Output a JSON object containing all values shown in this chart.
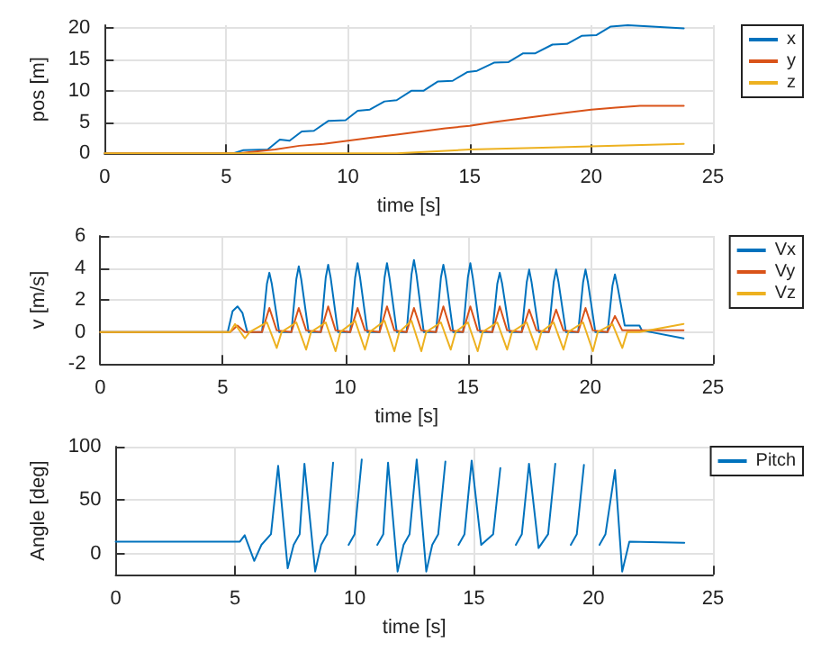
{
  "chart_data": [
    {
      "type": "line",
      "xlabel": "time [s]",
      "ylabel": "pos [m]",
      "xlim": [
        0,
        25
      ],
      "xticks": [
        0,
        5,
        10,
        15,
        20,
        25
      ],
      "ylim": [
        0,
        20.5
      ],
      "yticks": [
        0,
        5,
        10,
        15,
        20
      ],
      "grid": true,
      "legend": "top right",
      "marker": "none",
      "line_style": "solid",
      "series": [
        {
          "name": "x",
          "color": "#0072bd",
          "x": [
            0,
            5.3,
            5.7,
            6.7,
            7.2,
            7.6,
            8.1,
            8.6,
            9.2,
            9.9,
            10.4,
            10.9,
            11.5,
            12,
            12.6,
            13.1,
            13.7,
            14.3,
            14.9,
            15.3,
            16,
            16.6,
            17.2,
            17.7,
            18.4,
            19,
            19.6,
            20.2,
            20.8,
            21.5,
            22.5,
            23.8
          ],
          "values": [
            0,
            0,
            0.5,
            0.6,
            2.2,
            2,
            3.5,
            3.6,
            5.2,
            5.3,
            6.8,
            7,
            8.3,
            8.5,
            10,
            10,
            11.5,
            11.6,
            13,
            13.2,
            14.5,
            14.6,
            16,
            16,
            17.4,
            17.5,
            18.8,
            18.9,
            20.3,
            20.5,
            20.3,
            20
          ]
        },
        {
          "name": "y",
          "color": "#d95319",
          "x": [
            0,
            5.5,
            7,
            8,
            9,
            10,
            11,
            12,
            13,
            14,
            15,
            16,
            17,
            18,
            19,
            20,
            21,
            22,
            23.8
          ],
          "values": [
            0,
            0,
            0.6,
            1.2,
            1.5,
            2,
            2.5,
            3,
            3.5,
            4,
            4.4,
            5,
            5.5,
            6,
            6.5,
            7,
            7.3,
            7.6,
            7.6
          ]
        },
        {
          "name": "z",
          "color": "#edb120",
          "x": [
            0,
            12,
            15,
            18,
            20,
            23.8
          ],
          "values": [
            0,
            0,
            0.6,
            0.9,
            1.1,
            1.5
          ]
        }
      ]
    },
    {
      "type": "line",
      "xlabel": "time [s]",
      "ylabel": "v [m/s]",
      "xlim": [
        0,
        25
      ],
      "xticks": [
        0,
        5,
        10,
        15,
        20,
        25
      ],
      "ylim": [
        -2,
        6
      ],
      "yticks": [
        -2,
        0,
        2,
        4,
        6
      ],
      "grid": true,
      "legend": "top right",
      "marker": "none",
      "line_style": "solid",
      "series": [
        {
          "name": "Vx",
          "color": "#0072bd",
          "x": [
            0,
            5.2,
            5.4,
            5.6,
            5.8,
            6.0,
            6.6,
            6.8,
            6.9,
            7.0,
            7.3,
            7.8,
            8.0,
            8.1,
            8.2,
            8.5,
            9.0,
            9.2,
            9.3,
            9.4,
            9.7,
            10.2,
            10.4,
            10.5,
            10.6,
            10.9,
            11.4,
            11.6,
            11.7,
            11.8,
            12.1,
            12.5,
            12.7,
            12.8,
            12.9,
            13.2,
            13.7,
            13.9,
            14.0,
            14.1,
            14.4,
            14.8,
            15.0,
            15.1,
            15.2,
            15.5,
            16.0,
            16.2,
            16.3,
            16.4,
            16.7,
            17.2,
            17.4,
            17.5,
            17.6,
            17.9,
            18.3,
            18.5,
            18.6,
            18.7,
            19.0,
            19.5,
            19.7,
            19.8,
            19.9,
            20.2,
            20.7,
            20.9,
            21.0,
            21.1,
            21.4,
            21.6,
            22.0,
            22.1,
            23.8
          ],
          "values": [
            0,
            0,
            1.3,
            1.6,
            1.2,
            0,
            0,
            3.0,
            3.7,
            3.0,
            0,
            0,
            3.3,
            4.1,
            3.3,
            0,
            0,
            3.4,
            4.2,
            3.4,
            0,
            0,
            3.4,
            4.3,
            3.4,
            0,
            0,
            3.4,
            4.3,
            3.4,
            0,
            0,
            3.6,
            4.5,
            3.6,
            0,
            0,
            3.4,
            4.2,
            3.4,
            0,
            0,
            3.4,
            4.3,
            3.4,
            0,
            0,
            3.0,
            3.7,
            3.0,
            0,
            0,
            3.1,
            3.9,
            3.1,
            0,
            0,
            3.1,
            3.9,
            3.1,
            0,
            0,
            3.1,
            3.9,
            3.1,
            0,
            0,
            2.9,
            3.6,
            2.9,
            0.4,
            0.4,
            0.4,
            0.1,
            -0.4
          ]
        },
        {
          "name": "Vy",
          "color": "#d95319",
          "x": [
            0,
            5.3,
            5.6,
            5.9,
            6.6,
            6.9,
            7.2,
            7.8,
            8.1,
            8.4,
            9.0,
            9.3,
            9.6,
            10.2,
            10.5,
            10.8,
            11.4,
            11.7,
            12.0,
            12.5,
            12.8,
            13.1,
            13.7,
            14.0,
            14.3,
            14.8,
            15.1,
            15.4,
            16.0,
            16.3,
            16.6,
            17.2,
            17.5,
            17.8,
            18.3,
            18.6,
            18.9,
            19.5,
            19.8,
            20.1,
            20.7,
            21.0,
            21.3,
            23.8
          ],
          "values": [
            0,
            0,
            0.4,
            0,
            0,
            1.5,
            0.1,
            0,
            1.5,
            0.1,
            0,
            1.6,
            0.1,
            0,
            1.5,
            0.1,
            0,
            1.6,
            0.1,
            0,
            1.5,
            0.1,
            0,
            1.6,
            0.1,
            0,
            1.6,
            0.1,
            0,
            1.6,
            0.1,
            0,
            1.4,
            0.1,
            0,
            1.4,
            0.1,
            0,
            1.5,
            0.1,
            0,
            1.0,
            0.1,
            0.1
          ]
        },
        {
          "name": "Vz",
          "color": "#edb120",
          "x": [
            0,
            5.3,
            5.5,
            5.9,
            6.1,
            6.8,
            7.2,
            7.4,
            8.0,
            8.4,
            8.6,
            9.2,
            9.6,
            9.8,
            10.4,
            10.8,
            11.0,
            11.6,
            12.0,
            12.2,
            12.7,
            13.1,
            13.3,
            13.9,
            14.3,
            14.5,
            15.0,
            15.4,
            15.6,
            16.2,
            16.6,
            16.8,
            17.4,
            17.8,
            18.0,
            18.5,
            18.9,
            19.1,
            19.7,
            20.1,
            20.3,
            20.9,
            21.3,
            21.5,
            22.0,
            23.8
          ],
          "values": [
            0,
            0,
            0.5,
            -0.4,
            0,
            0.6,
            -1.0,
            0,
            0.6,
            -1.1,
            0,
            0.6,
            -1.2,
            0,
            0.7,
            -1.1,
            0,
            0.7,
            -1.2,
            0,
            0.7,
            -1.2,
            0,
            0.6,
            -1.1,
            0,
            0.6,
            -1.2,
            0,
            0.6,
            -1.1,
            0,
            0.6,
            -1.1,
            0,
            0.6,
            -1.1,
            0,
            0.6,
            -1.2,
            0,
            0.5,
            -1.0,
            0,
            0,
            0.5
          ]
        }
      ]
    },
    {
      "type": "line",
      "xlabel": "time [s]",
      "ylabel": "Angle [deg]",
      "xlim": [
        0,
        25
      ],
      "xticks": [
        0,
        5,
        10,
        15,
        20,
        25
      ],
      "ylim": [
        -20,
        100
      ],
      "yticks": [
        0,
        50,
        100
      ],
      "grid": true,
      "legend": "top right",
      "marker": "none",
      "line_style": "solid",
      "series": [
        {
          "name": "Pitch",
          "color": "#0072bd",
          "x": [
            0,
            5.2,
            5.4,
            5.8,
            6.1,
            6.5,
            6.8,
            7.2,
            7.45,
            7.7,
            7.9,
            8.35,
            8.6,
            8.85,
            9.1,
            9.5,
            9.75,
            10.0,
            10.3,
            10.7,
            10.95,
            11.2,
            11.4,
            11.8,
            12.05,
            12.3,
            12.6,
            13.0,
            13.25,
            13.5,
            13.8,
            14.1,
            14.35,
            14.6,
            14.9,
            15.3,
            15.8,
            16.1,
            16.5,
            16.75,
            17.0,
            17.3,
            17.7,
            18.1,
            18.4,
            18.8,
            19.05,
            19.3,
            19.6,
            20.0,
            20.25,
            20.5,
            20.9,
            21.2,
            21.5,
            23.8
          ],
          "values": [
            11,
            11,
            17,
            -7,
            8,
            18,
            82,
            -14,
            8,
            18,
            84,
            -17,
            8,
            18,
            85,
            null,
            8,
            18,
            88,
            null,
            8,
            18,
            85,
            -17,
            8,
            18,
            88,
            -17,
            8,
            18,
            86,
            null,
            8,
            18,
            87,
            8,
            18,
            80,
            null,
            8,
            18,
            84,
            5,
            18,
            84,
            null,
            8,
            18,
            83,
            null,
            8,
            18,
            78,
            -17,
            11,
            10
          ]
        }
      ]
    }
  ]
}
